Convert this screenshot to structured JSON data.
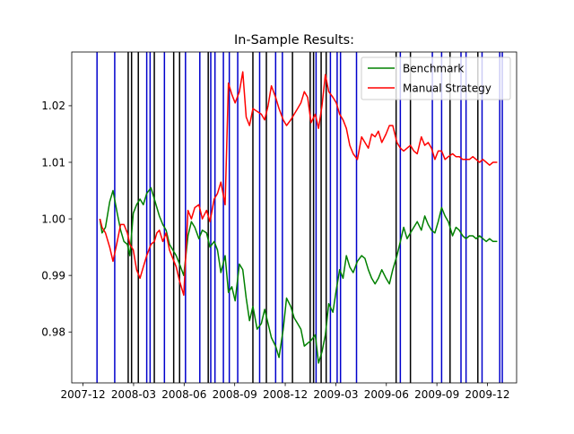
{
  "chart_data": {
    "type": "line",
    "title": "In-Sample Results:",
    "xlabel": "",
    "ylabel": "",
    "x_tick_labels": [
      "2007-12",
      "2008-03",
      "2008-06",
      "2008-09",
      "2008-12",
      "2009-03",
      "2009-06",
      "2009-09",
      "2009-12"
    ],
    "y_tick_labels": [
      "0.98",
      "0.99",
      "1.00",
      "1.01",
      "1.02"
    ],
    "x_ticks": [
      -0.13,
      2.87,
      5.87,
      8.87,
      11.87,
      14.87,
      17.87,
      20.87,
      23.87
    ],
    "y_ticks": [
      0.98,
      0.99,
      1.0,
      1.01,
      1.02
    ],
    "xlim": [
      -0.8,
      25.6
    ],
    "ylim": [
      0.971,
      1.0295
    ],
    "grid": false,
    "legend": "top-right",
    "series": [
      {
        "name": "Benchmark",
        "color": "#008000",
        "x": [
          0.87,
          1.0,
          1.2,
          1.45,
          1.65,
          1.9,
          2.1,
          2.3,
          2.5,
          2.65,
          2.85,
          3.05,
          3.25,
          3.45,
          3.65,
          3.9,
          4.1,
          4.25,
          4.4,
          4.6,
          4.8,
          5.0,
          5.2,
          5.4,
          5.6,
          5.85,
          6.1,
          6.3,
          6.5,
          6.75,
          6.95,
          7.2,
          7.4,
          7.65,
          7.85,
          8.05,
          8.3,
          8.5,
          8.7,
          8.9,
          9.15,
          9.35,
          9.55,
          9.75,
          9.95,
          10.2,
          10.45,
          10.65,
          10.85,
          11.05,
          11.3,
          11.5,
          11.75,
          11.95,
          12.2,
          12.4,
          12.6,
          12.8,
          13.0,
          13.2,
          13.4,
          13.65,
          13.85,
          14.05,
          14.25,
          14.45,
          14.7,
          14.9,
          15.1,
          15.3,
          15.5,
          15.7,
          15.9,
          16.15,
          16.4,
          16.6,
          16.8,
          17.0,
          17.2,
          17.4,
          17.6,
          17.85,
          18.05,
          18.25,
          18.5,
          18.7,
          18.9,
          19.1,
          19.3,
          19.5,
          19.7,
          19.95,
          20.15,
          20.35,
          20.55,
          20.75,
          20.95,
          21.15,
          21.35,
          21.55,
          21.8,
          22.0,
          22.2,
          22.4,
          22.6,
          22.8,
          23.0,
          23.2,
          23.4,
          23.6,
          23.8,
          24.0,
          24.2,
          24.45
        ],
        "values": [
          1.0,
          0.9975,
          0.9985,
          1.003,
          1.005,
          1.001,
          0.998,
          0.996,
          0.9955,
          0.9935,
          1.001,
          1.0025,
          1.0035,
          1.0025,
          1.0045,
          1.0055,
          1.0035,
          1.002,
          1.0005,
          0.999,
          0.998,
          0.9955,
          0.9945,
          0.9935,
          0.992,
          0.99,
          0.997,
          0.9995,
          0.9985,
          0.9965,
          0.998,
          0.9975,
          0.995,
          0.996,
          0.9945,
          0.9905,
          0.9935,
          0.987,
          0.988,
          0.9855,
          0.992,
          0.991,
          0.986,
          0.982,
          0.9845,
          0.9805,
          0.9815,
          0.984,
          0.9815,
          0.979,
          0.9775,
          0.9755,
          0.9805,
          0.986,
          0.9845,
          0.9825,
          0.9815,
          0.9805,
          0.9775,
          0.978,
          0.9785,
          0.9795,
          0.9745,
          0.9765,
          0.9795,
          0.985,
          0.9835,
          0.9875,
          0.991,
          0.9895,
          0.9935,
          0.9915,
          0.9905,
          0.9925,
          0.9935,
          0.993,
          0.991,
          0.9895,
          0.9885,
          0.9895,
          0.991,
          0.9895,
          0.9885,
          0.991,
          0.9935,
          0.996,
          0.9985,
          0.9965,
          0.9975,
          0.9985,
          0.9995,
          0.998,
          1.0005,
          0.999,
          0.998,
          0.9975,
          0.9995,
          1.002,
          1.0005,
          0.9995,
          0.997,
          0.9985,
          0.998,
          0.997,
          0.9965,
          0.997,
          0.997,
          0.9965,
          0.997,
          0.9965,
          0.996,
          0.9965,
          0.996,
          0.996
        ]
      },
      {
        "name": "Manual Strategy",
        "color": "#ff0000",
        "x": [
          0.87,
          1.0,
          1.2,
          1.45,
          1.65,
          1.9,
          2.1,
          2.3,
          2.5,
          2.65,
          2.85,
          3.05,
          3.25,
          3.45,
          3.65,
          3.9,
          4.1,
          4.25,
          4.4,
          4.6,
          4.8,
          5.0,
          5.2,
          5.4,
          5.6,
          5.85,
          6.1,
          6.3,
          6.5,
          6.75,
          6.95,
          7.2,
          7.4,
          7.65,
          7.85,
          8.05,
          8.3,
          8.5,
          8.7,
          8.9,
          9.15,
          9.35,
          9.55,
          9.75,
          9.95,
          10.2,
          10.45,
          10.65,
          10.85,
          11.05,
          11.3,
          11.5,
          11.75,
          11.95,
          12.2,
          12.4,
          12.6,
          12.8,
          13.0,
          13.2,
          13.4,
          13.65,
          13.85,
          14.05,
          14.25,
          14.45,
          14.7,
          14.9,
          15.1,
          15.3,
          15.5,
          15.7,
          15.9,
          16.15,
          16.4,
          16.6,
          16.8,
          17.0,
          17.2,
          17.4,
          17.6,
          17.85,
          18.05,
          18.25,
          18.5,
          18.7,
          18.9,
          19.1,
          19.3,
          19.5,
          19.7,
          19.95,
          20.15,
          20.35,
          20.55,
          20.75,
          20.95,
          21.15,
          21.35,
          21.55,
          21.8,
          22.0,
          22.2,
          22.4,
          22.6,
          22.8,
          23.0,
          23.2,
          23.4,
          23.6,
          23.8,
          24.0,
          24.2,
          24.45
        ],
        "values": [
          1.0,
          0.9985,
          0.9975,
          0.995,
          0.9925,
          0.996,
          0.999,
          0.999,
          0.9975,
          0.9955,
          0.9945,
          0.991,
          0.9895,
          0.9915,
          0.9935,
          0.9955,
          0.996,
          0.9975,
          0.998,
          0.996,
          0.9975,
          0.9945,
          0.993,
          0.9915,
          0.989,
          0.9865,
          1.0015,
          1.0,
          1.002,
          1.0025,
          1.0,
          1.0015,
          0.9995,
          1.0035,
          1.0045,
          1.0065,
          1.0025,
          1.024,
          1.022,
          1.0205,
          1.0225,
          1.026,
          1.018,
          1.0165,
          1.0195,
          1.019,
          1.0185,
          1.0175,
          1.02,
          1.0235,
          1.0215,
          1.0195,
          1.0175,
          1.0165,
          1.0175,
          1.0185,
          1.0195,
          1.0205,
          1.0225,
          1.0215,
          1.017,
          1.0185,
          1.016,
          1.02,
          1.0255,
          1.0225,
          1.0215,
          1.0205,
          1.0185,
          1.0175,
          1.016,
          1.013,
          1.0115,
          1.0105,
          1.0145,
          1.0135,
          1.0125,
          1.015,
          1.0145,
          1.0155,
          1.0135,
          1.015,
          1.0165,
          1.0165,
          1.0135,
          1.0125,
          1.012,
          1.0125,
          1.013,
          1.012,
          1.0115,
          1.0145,
          1.013,
          1.0135,
          1.0125,
          1.0105,
          1.012,
          1.012,
          1.0105,
          1.011,
          1.0115,
          1.011,
          1.011,
          1.0105,
          1.0105,
          1.0105,
          1.011,
          1.0105,
          1.01,
          1.0105,
          1.01,
          1.0095,
          1.01,
          1.01
        ]
      }
    ],
    "vertical_markers": [
      {
        "x": 0.7,
        "color": "#0000cc"
      },
      {
        "x": 1.75,
        "color": "#0000cc"
      },
      {
        "x": 2.55,
        "color": "#000000"
      },
      {
        "x": 2.75,
        "color": "#000000"
      },
      {
        "x": 3.15,
        "color": "#000000"
      },
      {
        "x": 3.65,
        "color": "#0000cc"
      },
      {
        "x": 3.85,
        "color": "#0000cc"
      },
      {
        "x": 4.1,
        "color": "#000000"
      },
      {
        "x": 4.7,
        "color": "#0000cc"
      },
      {
        "x": 5.25,
        "color": "#000000"
      },
      {
        "x": 5.6,
        "color": "#000000"
      },
      {
        "x": 5.95,
        "color": "#0000cc"
      },
      {
        "x": 6.8,
        "color": "#0000cc"
      },
      {
        "x": 7.3,
        "color": "#000000"
      },
      {
        "x": 7.45,
        "color": "#0000cc"
      },
      {
        "x": 7.7,
        "color": "#0000cc"
      },
      {
        "x": 8.2,
        "color": "#0000cc"
      },
      {
        "x": 8.55,
        "color": "#0000cc"
      },
      {
        "x": 9.05,
        "color": "#0000cc"
      },
      {
        "x": 9.95,
        "color": "#000000"
      },
      {
        "x": 10.35,
        "color": "#0000cc"
      },
      {
        "x": 10.75,
        "color": "#000000"
      },
      {
        "x": 11.3,
        "color": "#0000cc"
      },
      {
        "x": 11.7,
        "color": "#0000cc"
      },
      {
        "x": 12.3,
        "color": "#000000"
      },
      {
        "x": 13.35,
        "color": "#000000"
      },
      {
        "x": 13.55,
        "color": "#000000"
      },
      {
        "x": 13.7,
        "color": "#0000cc"
      },
      {
        "x": 14.0,
        "color": "#000000"
      },
      {
        "x": 14.3,
        "color": "#000000"
      },
      {
        "x": 14.55,
        "color": "#0000cc"
      },
      {
        "x": 14.95,
        "color": "#0000cc"
      },
      {
        "x": 15.15,
        "color": "#0000cc"
      },
      {
        "x": 16.1,
        "color": "#0000cc"
      },
      {
        "x": 18.45,
        "color": "#000000"
      },
      {
        "x": 18.7,
        "color": "#0000cc"
      },
      {
        "x": 19.3,
        "color": "#000000"
      },
      {
        "x": 20.6,
        "color": "#0000cc"
      },
      {
        "x": 21.15,
        "color": "#0000cc"
      },
      {
        "x": 21.65,
        "color": "#000000"
      },
      {
        "x": 22.3,
        "color": "#0000cc"
      },
      {
        "x": 22.6,
        "color": "#0000cc"
      },
      {
        "x": 23.3,
        "color": "#000000"
      },
      {
        "x": 23.55,
        "color": "#0000cc"
      },
      {
        "x": 24.6,
        "color": "#0000cc"
      },
      {
        "x": 24.75,
        "color": "#0000cc"
      }
    ]
  }
}
